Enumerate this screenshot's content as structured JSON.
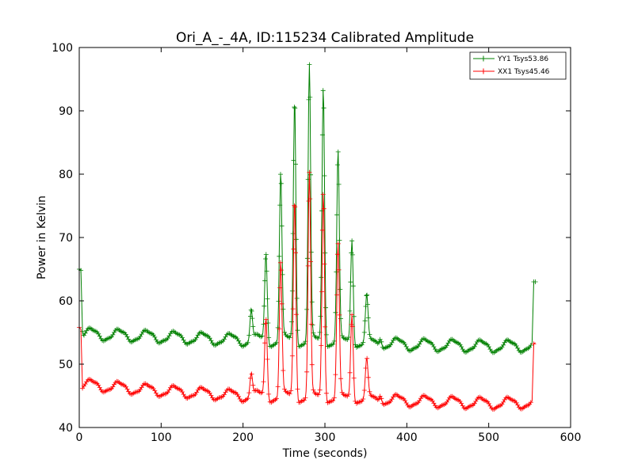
{
  "chart_data": {
    "type": "line",
    "title": "Ori_A_-_4A, ID:115234 Calibrated Amplitude",
    "xlabel": "Time (seconds)",
    "ylabel": "Power in Kelvin",
    "xlim": [
      0,
      600
    ],
    "ylim": [
      40,
      100
    ],
    "xticks": [
      "0",
      "100",
      "200",
      "300",
      "400",
      "500",
      "600"
    ],
    "yticks": [
      "40",
      "50",
      "60",
      "70",
      "80",
      "90",
      "100"
    ],
    "grid": false,
    "legend": "top-right",
    "marker": "+",
    "series": [
      {
        "name": "YY1 Tsys53.86",
        "color": "#008000",
        "x_range": [
          2,
          557
        ],
        "baseline": {
          "trend": [
            [
              2,
              54.8
            ],
            [
              100,
              54.3
            ],
            [
              200,
              53.8
            ],
            [
              300,
              53.6
            ],
            [
              400,
              53.1
            ],
            [
              500,
              52.8
            ],
            [
              557,
              52.9
            ]
          ],
          "ripple_amplitude": 0.9,
          "ripple_period": 34,
          "ripple_phase": 6
        },
        "edges": [
          [
            0,
            65
          ],
          [
            2,
            64.8
          ],
          [
            4,
            55.2
          ],
          [
            553,
            53.4
          ],
          [
            555,
            63
          ],
          [
            557,
            63
          ]
        ],
        "spikes": [
          [
            210,
            58.8
          ],
          [
            228,
            67.5
          ],
          [
            246,
            80
          ],
          [
            263,
            92
          ],
          [
            281,
            96.8
          ],
          [
            298,
            94
          ],
          [
            316,
            83
          ],
          [
            333,
            70.2
          ],
          [
            351,
            60.2
          ],
          [
            368,
            54.8
          ]
        ]
      },
      {
        "name": "XX1 Tsys45.46",
        "color": "#ff0000",
        "x_range": [
          2,
          557
        ],
        "baseline": {
          "trend": [
            [
              2,
              46.8
            ],
            [
              100,
              45.8
            ],
            [
              200,
              45.0
            ],
            [
              300,
              44.7
            ],
            [
              400,
              44.2
            ],
            [
              500,
              43.8
            ],
            [
              557,
              43.9
            ]
          ],
          "ripple_amplitude": 0.85,
          "ripple_period": 34,
          "ripple_phase": 6
        },
        "edges": [
          [
            0,
            55.8
          ],
          [
            2,
            55.5
          ],
          [
            4,
            46.2
          ],
          [
            553,
            44.2
          ],
          [
            555,
            53.2
          ],
          [
            557,
            53.4
          ]
        ],
        "spikes": [
          [
            210,
            48.8
          ],
          [
            228,
            57.2
          ],
          [
            246,
            66
          ],
          [
            263,
            76.2
          ],
          [
            281,
            79.8
          ],
          [
            298,
            77.5
          ],
          [
            316,
            68.5
          ],
          [
            333,
            58.5
          ],
          [
            351,
            50.2
          ],
          [
            368,
            45.8
          ]
        ]
      }
    ]
  }
}
